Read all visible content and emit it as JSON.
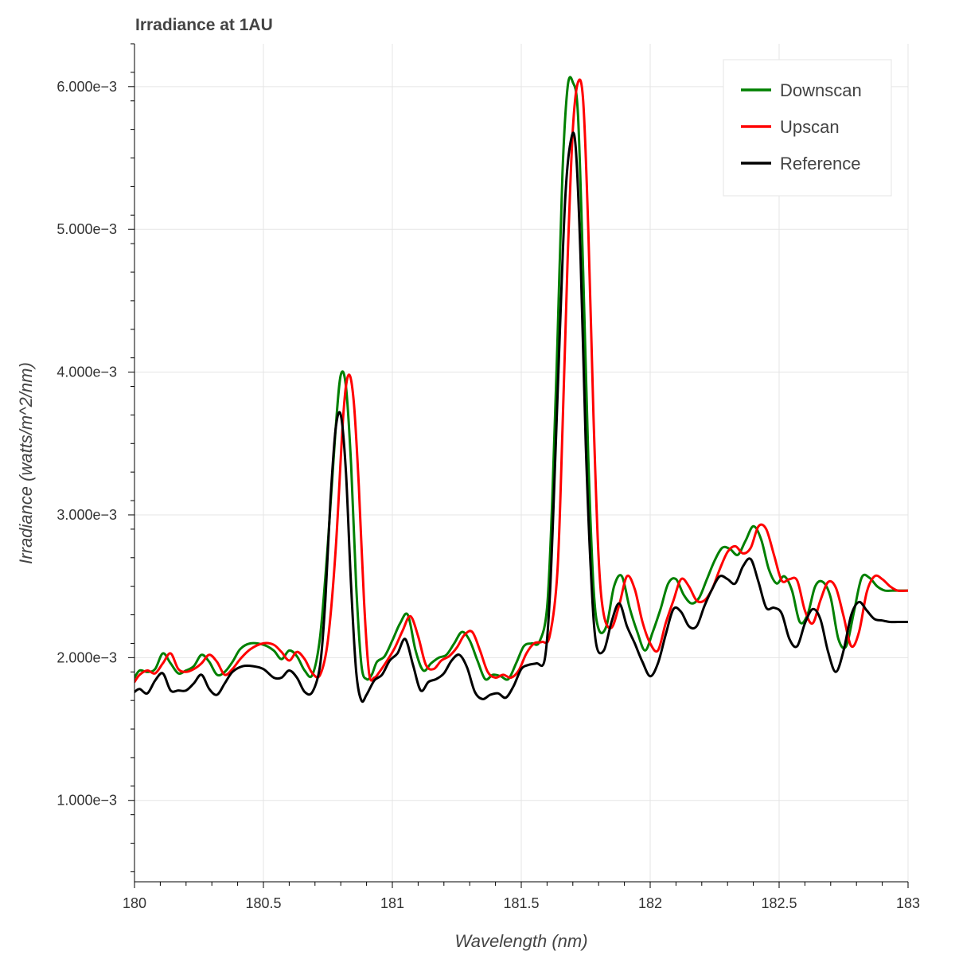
{
  "chart_data": {
    "type": "line",
    "title": "Irradiance at 1AU",
    "xlabel": "Wavelength (nm)",
    "ylabel": "Irradiance (watts/m^2/nm)",
    "xlim": [
      180,
      183
    ],
    "ylim": [
      0.00043,
      0.0063
    ],
    "x_ticks": [
      180,
      180.5,
      181,
      181.5,
      182,
      182.5,
      183
    ],
    "x_tick_labels": [
      "180",
      "180.5",
      "181",
      "181.5",
      "182",
      "182.5",
      "183"
    ],
    "y_ticks": [
      0.001,
      0.002,
      0.003,
      0.004,
      0.005,
      0.006
    ],
    "y_tick_labels": [
      "1.000e−3",
      "2.000e−3",
      "3.000e−3",
      "4.000e−3",
      "5.000e−3",
      "6.000e−3"
    ],
    "grid": true,
    "legend_position": "top-right",
    "series": [
      {
        "name": "Downscan",
        "color": "#008000",
        "x": [
          180.0,
          180.02,
          180.05,
          180.08,
          180.11,
          180.14,
          180.17,
          180.2,
          180.23,
          180.26,
          180.29,
          180.32,
          180.35,
          180.38,
          180.41,
          180.45,
          180.5,
          180.54,
          180.57,
          180.6,
          180.63,
          180.66,
          180.69,
          180.72,
          180.75,
          180.78,
          180.8,
          180.82,
          180.84,
          180.86,
          180.88,
          180.9,
          180.92,
          180.94,
          180.97,
          181.0,
          181.03,
          181.06,
          181.09,
          181.12,
          181.15,
          181.18,
          181.21,
          181.24,
          181.27,
          181.3,
          181.33,
          181.36,
          181.39,
          181.42,
          181.45,
          181.48,
          181.51,
          181.54,
          181.57,
          181.6,
          181.62,
          181.64,
          181.66,
          181.68,
          181.7,
          181.72,
          181.74,
          181.76,
          181.78,
          181.8,
          181.83,
          181.86,
          181.89,
          181.92,
          181.95,
          181.98,
          182.01,
          182.04,
          182.07,
          182.1,
          182.13,
          182.16,
          182.19,
          182.22,
          182.25,
          182.28,
          182.31,
          182.34,
          182.37,
          182.4,
          182.43,
          182.46,
          182.49,
          182.52,
          182.55,
          182.58,
          182.61,
          182.64,
          182.67,
          182.7,
          182.73,
          182.76,
          182.79,
          182.82,
          182.85,
          182.88,
          182.91,
          182.94,
          182.97,
          183.0
        ],
        "y": [
          0.00186,
          0.00191,
          0.0019,
          0.00192,
          0.00203,
          0.00196,
          0.00189,
          0.00191,
          0.00194,
          0.00202,
          0.00197,
          0.00188,
          0.0019,
          0.00197,
          0.00206,
          0.0021,
          0.00209,
          0.00205,
          0.00199,
          0.00205,
          0.00201,
          0.00191,
          0.00188,
          0.00215,
          0.0028,
          0.0036,
          0.00398,
          0.0039,
          0.00335,
          0.0025,
          0.00195,
          0.00185,
          0.00188,
          0.00197,
          0.00201,
          0.00212,
          0.00224,
          0.0023,
          0.00205,
          0.00191,
          0.00196,
          0.002,
          0.00202,
          0.0021,
          0.00218,
          0.00212,
          0.00198,
          0.00185,
          0.00188,
          0.00187,
          0.00185,
          0.00196,
          0.00208,
          0.0021,
          0.00211,
          0.00235,
          0.0031,
          0.0042,
          0.0054,
          0.006,
          0.00603,
          0.0058,
          0.0047,
          0.0034,
          0.0025,
          0.0022,
          0.00222,
          0.0025,
          0.00257,
          0.00235,
          0.00218,
          0.00205,
          0.00218,
          0.00234,
          0.00252,
          0.00255,
          0.00244,
          0.00238,
          0.00242,
          0.00255,
          0.00268,
          0.00277,
          0.00276,
          0.00272,
          0.00282,
          0.00292,
          0.00283,
          0.00262,
          0.00252,
          0.00257,
          0.00247,
          0.00225,
          0.0023,
          0.0025,
          0.00253,
          0.00242,
          0.00213,
          0.00208,
          0.00232,
          0.00256,
          0.00256,
          0.0025,
          0.00247,
          0.00247,
          0.00247,
          0.00247
        ]
      },
      {
        "name": "Upscan",
        "color": "#ff0000",
        "x": [
          180.0,
          180.02,
          180.05,
          180.08,
          180.11,
          180.14,
          180.17,
          180.2,
          180.23,
          180.26,
          180.29,
          180.32,
          180.35,
          180.38,
          180.41,
          180.45,
          180.5,
          180.54,
          180.57,
          180.6,
          180.63,
          180.66,
          180.69,
          180.72,
          180.75,
          180.78,
          180.81,
          180.83,
          180.85,
          180.87,
          180.89,
          180.91,
          180.93,
          180.95,
          180.98,
          181.01,
          181.04,
          181.07,
          181.1,
          181.13,
          181.16,
          181.19,
          181.22,
          181.25,
          181.28,
          181.31,
          181.34,
          181.37,
          181.4,
          181.43,
          181.46,
          181.49,
          181.52,
          181.55,
          181.58,
          181.61,
          181.64,
          181.66,
          181.68,
          181.7,
          181.72,
          181.74,
          181.76,
          181.78,
          181.8,
          181.82,
          181.85,
          181.88,
          181.91,
          181.94,
          181.97,
          182.0,
          182.03,
          182.06,
          182.09,
          182.12,
          182.15,
          182.18,
          182.21,
          182.24,
          182.27,
          182.3,
          182.33,
          182.36,
          182.39,
          182.42,
          182.45,
          182.48,
          182.51,
          182.54,
          182.57,
          182.6,
          182.63,
          182.66,
          182.69,
          182.72,
          182.75,
          182.78,
          182.81,
          182.84,
          182.87,
          182.9,
          182.93,
          182.96,
          183.0
        ],
        "y": [
          0.00183,
          0.00188,
          0.00191,
          0.00189,
          0.00196,
          0.00203,
          0.00192,
          0.0019,
          0.00192,
          0.00196,
          0.00202,
          0.00197,
          0.00188,
          0.00192,
          0.00199,
          0.00206,
          0.0021,
          0.00209,
          0.00204,
          0.00198,
          0.00204,
          0.00199,
          0.00189,
          0.00188,
          0.00212,
          0.00275,
          0.0037,
          0.00398,
          0.0038,
          0.0032,
          0.0024,
          0.00189,
          0.00186,
          0.0019,
          0.00198,
          0.00207,
          0.00219,
          0.00229,
          0.00215,
          0.00195,
          0.00192,
          0.00198,
          0.00201,
          0.00207,
          0.00216,
          0.00218,
          0.00205,
          0.0019,
          0.00186,
          0.00188,
          0.00186,
          0.00191,
          0.00203,
          0.0021,
          0.00211,
          0.00215,
          0.0026,
          0.0036,
          0.0048,
          0.0057,
          0.00603,
          0.0059,
          0.005,
          0.0037,
          0.0027,
          0.0023,
          0.00221,
          0.00237,
          0.00257,
          0.00248,
          0.00225,
          0.0021,
          0.00205,
          0.00224,
          0.0024,
          0.00255,
          0.0025,
          0.0024,
          0.0024,
          0.00248,
          0.00262,
          0.00274,
          0.00278,
          0.00273,
          0.00277,
          0.00292,
          0.0029,
          0.00272,
          0.00254,
          0.00255,
          0.00254,
          0.00233,
          0.00224,
          0.0024,
          0.00253,
          0.00249,
          0.00229,
          0.00208,
          0.00218,
          0.00246,
          0.00257,
          0.00255,
          0.0025,
          0.00247,
          0.00247
        ]
      },
      {
        "name": "Reference",
        "color": "#000000",
        "x": [
          180.0,
          180.02,
          180.05,
          180.08,
          180.11,
          180.14,
          180.17,
          180.2,
          180.23,
          180.26,
          180.29,
          180.32,
          180.35,
          180.38,
          180.42,
          180.46,
          180.5,
          180.54,
          180.57,
          180.6,
          180.63,
          180.66,
          180.69,
          180.72,
          180.74,
          180.76,
          180.78,
          180.8,
          180.82,
          180.84,
          180.86,
          180.88,
          180.9,
          180.93,
          180.96,
          180.99,
          181.02,
          181.05,
          181.08,
          181.11,
          181.14,
          181.17,
          181.2,
          181.23,
          181.26,
          181.29,
          181.32,
          181.35,
          181.38,
          181.41,
          181.44,
          181.47,
          181.5,
          181.53,
          181.56,
          181.59,
          181.61,
          181.63,
          181.65,
          181.67,
          181.69,
          181.71,
          181.73,
          181.75,
          181.77,
          181.79,
          181.82,
          181.85,
          181.88,
          181.91,
          181.94,
          181.97,
          182.0,
          182.03,
          182.06,
          182.09,
          182.12,
          182.15,
          182.18,
          182.21,
          182.24,
          182.27,
          182.3,
          182.33,
          182.36,
          182.39,
          182.42,
          182.45,
          182.48,
          182.51,
          182.54,
          182.57,
          182.6,
          182.63,
          182.66,
          182.69,
          182.72,
          182.75,
          182.78,
          182.81,
          182.84,
          182.87,
          182.9,
          182.93,
          182.96,
          183.0
        ],
        "y": [
          0.00176,
          0.00178,
          0.00175,
          0.00184,
          0.00189,
          0.00177,
          0.00177,
          0.00177,
          0.00182,
          0.00188,
          0.00178,
          0.00174,
          0.00182,
          0.0019,
          0.00194,
          0.00194,
          0.00192,
          0.00186,
          0.00186,
          0.00191,
          0.00186,
          0.00176,
          0.00176,
          0.00195,
          0.0024,
          0.0031,
          0.0036,
          0.0037,
          0.0033,
          0.0025,
          0.0019,
          0.0017,
          0.00174,
          0.00184,
          0.00188,
          0.00198,
          0.00203,
          0.00213,
          0.00195,
          0.00177,
          0.00183,
          0.00185,
          0.00189,
          0.00198,
          0.00202,
          0.00193,
          0.00176,
          0.00171,
          0.00174,
          0.00175,
          0.00172,
          0.0018,
          0.00192,
          0.00195,
          0.00196,
          0.00198,
          0.0024,
          0.0033,
          0.0043,
          0.0052,
          0.0056,
          0.0056,
          0.0048,
          0.0035,
          0.0026,
          0.0021,
          0.00205,
          0.00225,
          0.00238,
          0.00222,
          0.0021,
          0.00197,
          0.00187,
          0.00196,
          0.00216,
          0.00234,
          0.00232,
          0.00222,
          0.00222,
          0.00236,
          0.00248,
          0.00257,
          0.00255,
          0.00252,
          0.00264,
          0.00269,
          0.00253,
          0.00235,
          0.00235,
          0.00231,
          0.00213,
          0.00208,
          0.00224,
          0.00234,
          0.00227,
          0.00204,
          0.0019,
          0.00205,
          0.0023,
          0.00239,
          0.00233,
          0.00227,
          0.00226,
          0.00225,
          0.00225,
          0.00225
        ]
      }
    ]
  }
}
